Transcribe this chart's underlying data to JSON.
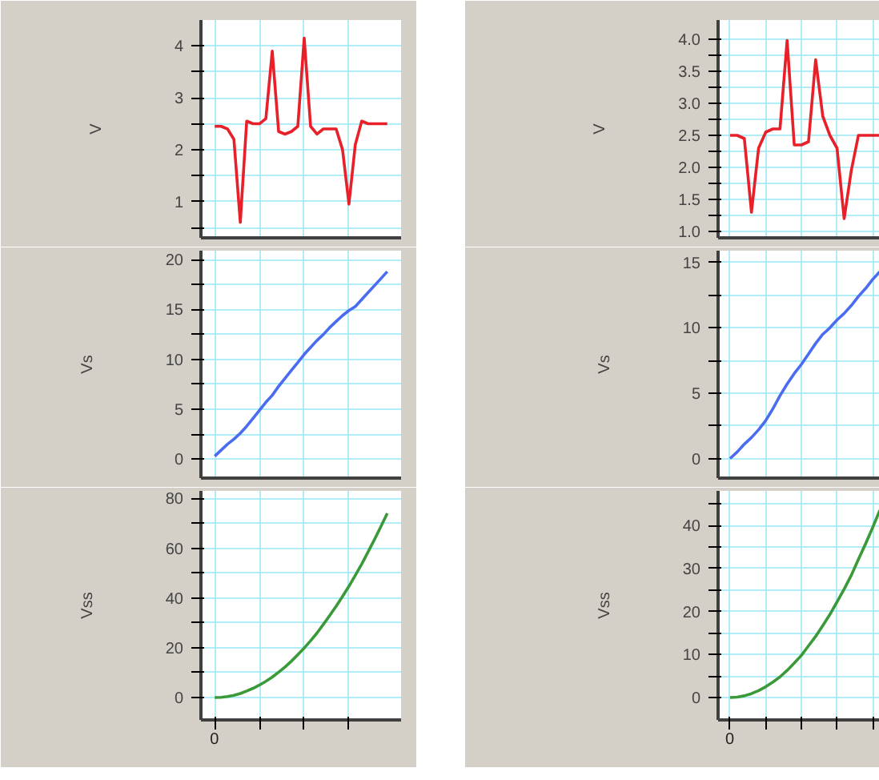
{
  "chart_data": [
    {
      "type": "line",
      "ylabel": "V",
      "categories": [
        null,
        null,
        null,
        null,
        null,
        null,
        null,
        null,
        null,
        null,
        null,
        null,
        null,
        null,
        null,
        null,
        null,
        null,
        null,
        null,
        null,
        null,
        null,
        null,
        null,
        null,
        null,
        null
      ],
      "series": [
        {
          "color": "#e8202a",
          "values": [
            2.45,
            2.45,
            2.4,
            2.2,
            0.6,
            2.55,
            2.5,
            2.5,
            2.6,
            3.9,
            2.35,
            2.3,
            2.35,
            2.45,
            4.15,
            2.45,
            2.3,
            2.4,
            2.4,
            2.4,
            2.0,
            0.95,
            2.1,
            2.55,
            2.5,
            2.5,
            2.5,
            2.5
          ]
        }
      ],
      "ylim": [
        0.3,
        4.5
      ],
      "yticks": [
        {
          "value": 0.5,
          "label": null
        },
        1,
        {
          "value": 1.5,
          "label": null
        },
        2,
        {
          "value": 2.5,
          "label": null
        },
        3,
        {
          "value": 3.5,
          "label": null
        },
        4
      ],
      "grid": true,
      "tick_labels": "y"
    },
    {
      "type": "line",
      "ylabel": "V",
      "categories": [
        null,
        null,
        null,
        null,
        null,
        null,
        null,
        null,
        null,
        null,
        null,
        null,
        null,
        null,
        null,
        null,
        null,
        null,
        null,
        null,
        null,
        null
      ],
      "series": [
        {
          "color": "#e8202a",
          "values": [
            2.5,
            2.5,
            2.45,
            1.3,
            2.3,
            2.55,
            2.6,
            2.6,
            3.98,
            2.35,
            2.35,
            2.4,
            3.68,
            2.8,
            2.5,
            2.3,
            1.2,
            1.95,
            2.5,
            2.5,
            2.5,
            2.5
          ]
        }
      ],
      "ylim": [
        0.9,
        4.3
      ],
      "yticks": [
        {
          "value": 1,
          "label": "1.0"
        },
        {
          "value": 1.25,
          "label": null
        },
        {
          "value": 1.5,
          "label": "1.5"
        },
        {
          "value": 1.75,
          "label": null
        },
        {
          "value": 2,
          "label": "2.0"
        },
        {
          "value": 2.25,
          "label": null
        },
        {
          "value": 2.5,
          "label": "2.5"
        },
        {
          "value": 2.75,
          "label": null
        },
        {
          "value": 3,
          "label": "3.0"
        },
        {
          "value": 3.25,
          "label": null
        },
        {
          "value": 3.5,
          "label": "3.5"
        },
        {
          "value": 3.75,
          "label": null
        },
        {
          "value": 4,
          "label": "4.0"
        }
      ],
      "grid": true,
      "tick_labels": "y"
    },
    {
      "type": "line",
      "ylabel": "Vs",
      "categories": [
        null,
        null,
        null,
        null,
        null,
        null,
        null,
        null,
        null,
        null,
        null,
        null,
        null,
        null,
        null,
        null,
        null,
        null,
        null,
        null,
        null,
        null,
        null,
        null,
        null,
        null,
        null,
        null
      ],
      "series": [
        {
          "color": "#4a6cf0",
          "values": [
            0.3,
            0.9,
            1.5,
            2.0,
            2.6,
            3.3,
            4.1,
            4.9,
            5.7,
            6.4,
            7.3,
            8.1,
            8.9,
            9.7,
            10.5,
            11.2,
            11.9,
            12.5,
            13.2,
            13.8,
            14.4,
            14.9,
            15.3,
            16.0,
            16.7,
            17.4,
            18.1,
            18.8
          ]
        }
      ],
      "ylim": [
        -1.9,
        20.9
      ],
      "yticks": [
        0,
        {
          "value": 2.5,
          "label": null
        },
        5,
        {
          "value": 7.5,
          "label": null
        },
        10,
        {
          "value": 12.5,
          "label": null
        },
        15,
        {
          "value": 17.5,
          "label": null
        },
        20
      ],
      "grid": true,
      "tick_labels": "y"
    },
    {
      "type": "line",
      "ylabel": "Vs",
      "categories": [
        null,
        null,
        null,
        null,
        null,
        null,
        null,
        null,
        null,
        null,
        null,
        null,
        null,
        null,
        null,
        null,
        null,
        null,
        null,
        null,
        null,
        null
      ],
      "series": [
        {
          "color": "#4a6cf0",
          "values": [
            0,
            0.5,
            1.1,
            1.6,
            2.2,
            2.9,
            3.8,
            4.8,
            5.7,
            6.5,
            7.2,
            8.0,
            8.8,
            9.5,
            10.0,
            10.6,
            11.1,
            11.7,
            12.4,
            13.0,
            13.7,
            14.3
          ]
        }
      ],
      "ylim": [
        -1.5,
        15.9
      ],
      "yticks": [
        0,
        {
          "value": 2.5,
          "label": null
        },
        5,
        {
          "value": 7.5,
          "label": null
        },
        10,
        {
          "value": 12.5,
          "label": null
        },
        15
      ],
      "grid": true,
      "tick_labels": "y"
    },
    {
      "type": "line",
      "ylabel": "Vss",
      "categories": [
        null,
        null,
        null,
        null,
        null,
        null,
        null,
        null,
        null,
        null,
        null,
        null,
        null,
        null,
        null,
        null,
        null,
        null,
        null,
        null,
        null,
        null,
        null,
        null,
        null,
        null,
        null,
        null
      ],
      "series": [
        {
          "color": "#3a9a3a",
          "values": [
            0,
            0.1,
            0.4,
            0.9,
            1.6,
            2.6,
            3.7,
            5.0,
            6.5,
            8.2,
            10.2,
            12.3,
            14.6,
            17.2,
            19.9,
            22.8,
            25.9,
            29.4,
            33.0,
            36.7,
            40.6,
            44.7,
            49.1,
            53.6,
            58.5,
            63.5,
            68.7,
            74.0
          ]
        }
      ],
      "ylim": [
        -9,
        83
      ],
      "yticks": [
        0,
        {
          "value": 10,
          "label": null
        },
        20,
        {
          "value": 30,
          "label": null
        },
        40,
        {
          "value": 50,
          "label": null
        },
        60,
        {
          "value": 70,
          "label": null
        },
        80
      ],
      "grid": true,
      "tick_labels": "y",
      "annotations": [
        "0"
      ]
    },
    {
      "type": "line",
      "ylabel": "Vss",
      "categories": [
        null,
        null,
        null,
        null,
        null,
        null,
        null,
        null,
        null,
        null,
        null,
        null,
        null,
        null,
        null,
        null,
        null,
        null,
        null,
        null,
        null,
        null
      ],
      "series": [
        {
          "color": "#3a9a3a",
          "values": [
            0,
            0.1,
            0.4,
            0.9,
            1.6,
            2.5,
            3.6,
            4.8,
            6.3,
            8.0,
            9.8,
            12.0,
            14.2,
            16.7,
            19.3,
            22.2,
            25.2,
            28.4,
            32.1,
            35.7,
            39.5,
            43.5
          ]
        }
      ],
      "ylim": [
        -5.2,
        48
      ],
      "yticks": [
        0,
        {
          "value": 5,
          "label": null
        },
        10,
        {
          "value": 15,
          "label": null
        },
        20,
        {
          "value": 25,
          "label": null
        },
        30,
        {
          "value": 35,
          "label": null
        },
        40,
        {
          "value": 45,
          "label": null
        }
      ],
      "grid": true,
      "tick_labels": "y",
      "annotations": [
        "0"
      ]
    }
  ]
}
